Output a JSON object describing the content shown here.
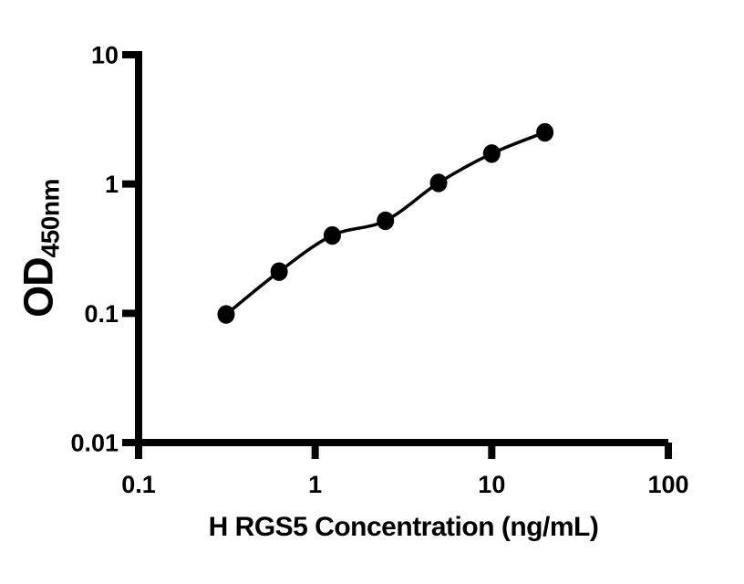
{
  "chart_data": {
    "type": "scatter",
    "title": "",
    "xlabel": "H RGS5 Concentration (ng/mL)",
    "ylabel_main": "OD",
    "ylabel_sub": "450nm",
    "x_scale": "log",
    "y_scale": "log",
    "xlim": [
      0.1,
      100
    ],
    "ylim": [
      0.01,
      10
    ],
    "x_ticks": [
      0.1,
      1,
      10,
      100
    ],
    "x_tick_labels": [
      "0.1",
      "1",
      "10",
      "100"
    ],
    "y_ticks": [
      10,
      1,
      0.1,
      0.01
    ],
    "y_tick_labels": [
      "10",
      "1",
      "0.1",
      "0.01"
    ],
    "grid": false,
    "legend": false,
    "axis_color": "#000000",
    "marker_color": "#000000",
    "line_color": "#000000",
    "background_color": "#ffffff",
    "series": [
      {
        "name": "standard-curve",
        "x": [
          0.313,
          0.625,
          1.25,
          2.5,
          5,
          10,
          20
        ],
        "y": [
          0.098,
          0.21,
          0.4,
          0.52,
          1.02,
          1.72,
          2.51
        ]
      }
    ]
  }
}
